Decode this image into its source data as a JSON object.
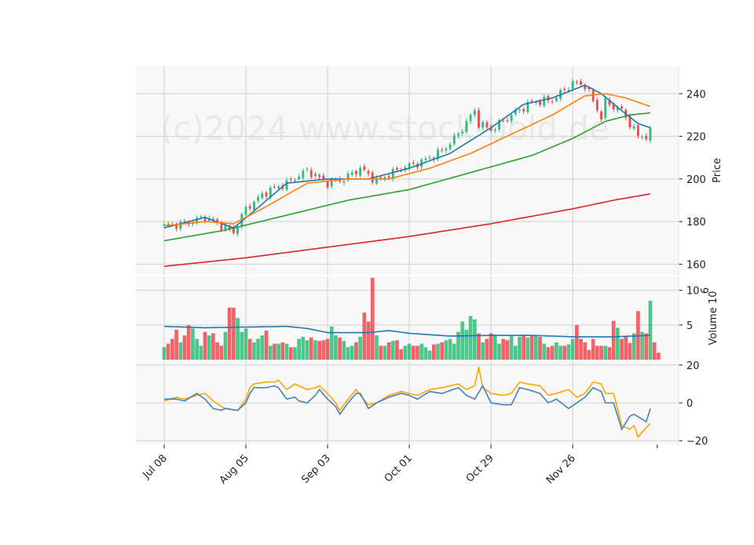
{
  "chart_data": {
    "type": "candlestick",
    "watermark": "(c)2024 www.stock-bold.de",
    "x_tick_labels": [
      "Jul 08",
      "Aug 05",
      "Sep 03",
      "Oct 01",
      "Oct 29",
      "Nov 26"
    ],
    "x_tick_days": [
      0,
      20,
      40,
      60,
      80,
      100
    ],
    "num_days": 120,
    "colors": {
      "up": "#2ebd7a",
      "down": "#f0494e",
      "ma1": "#1f77b4",
      "ma2": "#ff7f0e",
      "ma3": "#2ca02c",
      "ma4": "#d62728",
      "vol_ma": "#1f77b4",
      "osc1": "#4682b4",
      "osc2": "#ffa500"
    },
    "price_panel": {
      "ylabel": "Price",
      "ylim": [
        155,
        253
      ],
      "ticks": [
        160,
        180,
        200,
        220,
        240
      ],
      "anchors_day": [
        0,
        5,
        10,
        15,
        17,
        20,
        25,
        30,
        35,
        40,
        44,
        48,
        52,
        58,
        63,
        68,
        72,
        76,
        77,
        80,
        85,
        90,
        95,
        100,
        103,
        107,
        108,
        112,
        114,
        116,
        118,
        119
      ],
      "anchors_price": [
        178,
        179,
        182,
        177,
        175,
        186,
        194,
        198,
        204,
        198,
        200,
        205,
        199,
        205,
        208,
        213,
        221,
        232,
        226,
        223,
        230,
        236,
        237,
        245,
        244,
        229,
        236,
        232,
        226,
        220,
        220,
        222
      ],
      "ma_series": [
        {
          "key": "ma1",
          "day": [
            0,
            10,
            17,
            22,
            30,
            40,
            50,
            60,
            70,
            80,
            88,
            95,
            103,
            107,
            112,
            116,
            119
          ],
          "value": [
            177,
            182,
            177,
            185,
            198,
            200,
            200,
            205,
            212,
            224,
            235,
            238,
            244,
            240,
            232,
            226,
            224
          ]
        },
        {
          "key": "ma2",
          "day": [
            0,
            10,
            17,
            25,
            35,
            45,
            55,
            65,
            75,
            85,
            95,
            103,
            108,
            113,
            119
          ],
          "value": [
            178,
            180,
            179,
            187,
            198,
            200,
            200,
            205,
            212,
            221,
            230,
            239,
            240,
            238,
            234
          ]
        },
        {
          "key": "ma3",
          "day": [
            0,
            15,
            30,
            45,
            60,
            75,
            90,
            100,
            108,
            114,
            119
          ],
          "value": [
            171,
            176,
            183,
            190,
            195,
            203,
            211,
            219,
            227,
            230,
            231
          ]
        },
        {
          "key": "ma4",
          "day": [
            0,
            20,
            40,
            60,
            80,
            100,
            110,
            119
          ],
          "value": [
            159,
            163,
            168,
            173,
            179,
            186,
            190,
            193
          ]
        }
      ]
    },
    "volume_panel": {
      "ylabel": "Volume  10",
      "ylabel_exp": "6",
      "ylim": [
        0,
        12
      ],
      "ticks": [
        5,
        10
      ],
      "values": [
        1.8,
        2.3,
        3.0,
        4.3,
        2.5,
        3.5,
        5.0,
        4.5,
        3.0,
        2.0,
        4.0,
        3.5,
        3.8,
        2.5,
        2.0,
        4.0,
        7.5,
        7.5,
        6.0,
        4.0,
        4.5,
        3.0,
        2.5,
        3.0,
        3.5,
        4.2,
        2.0,
        2.3,
        2.3,
        2.5,
        2.3,
        1.8,
        1.8,
        3.0,
        3.3,
        2.8,
        3.2,
        2.8,
        2.7,
        2.8,
        3.0,
        4.8,
        3.5,
        3.2,
        2.7,
        1.8,
        2.0,
        2.5,
        3.3,
        6.8,
        5.5,
        11.8,
        3.5,
        2.0,
        2.0,
        2.5,
        2.7,
        2.8,
        1.5,
        2.0,
        2.3,
        2.0,
        2.0,
        2.3,
        1.8,
        1.3,
        2.2,
        2.3,
        2.5,
        2.8,
        3.0,
        2.3,
        4.0,
        5.5,
        4.3,
        6.3,
        5.8,
        3.8,
        2.5,
        3.0,
        3.8,
        3.6,
        2.3,
        3.0,
        2.8,
        3.5,
        2.0,
        3.3,
        3.6,
        3.2,
        3.5,
        3.5,
        3.3,
        2.3,
        1.8,
        2.0,
        2.5,
        2.0,
        2.0,
        2.2,
        3.0,
        5.0,
        3.0,
        2.5,
        1.4,
        3.0,
        2.0,
        2.0,
        2.0,
        1.8,
        5.6,
        4.6,
        3.0,
        3.4,
        2.4,
        3.8,
        7.0,
        4.0,
        3.8,
        8.5,
        2.5,
        1.0
      ],
      "ma_day": [
        0,
        10,
        20,
        30,
        35,
        40,
        50,
        55,
        60,
        70,
        80,
        90,
        100,
        110,
        119
      ],
      "ma_value": [
        4.8,
        4.6,
        4.7,
        4.8,
        4.5,
        3.9,
        3.9,
        4.2,
        3.8,
        3.4,
        3.5,
        3.5,
        3.3,
        3.3,
        3.5
      ]
    },
    "osc_panel": {
      "ylim": [
        -22,
        22
      ],
      "ticks": [
        -20,
        0,
        20
      ],
      "osc1_day": [
        0,
        3,
        5,
        8,
        10,
        12,
        14,
        15,
        18,
        20,
        21,
        22,
        25,
        27,
        28,
        30,
        32,
        33,
        35,
        37,
        38,
        40,
        42,
        43,
        45,
        47,
        48,
        50,
        52,
        55,
        58,
        60,
        62,
        65,
        68,
        72,
        74,
        76,
        78,
        80,
        83,
        85,
        87,
        89,
        92,
        94,
        96,
        99,
        101,
        103,
        105,
        107,
        108,
        110,
        112,
        114,
        115,
        118,
        119
      ],
      "osc1_value": [
        2,
        2,
        1,
        5,
        2,
        -3,
        -4,
        -3,
        -4,
        0,
        5,
        8,
        8,
        9,
        8,
        2,
        3,
        1,
        0,
        4,
        7,
        2,
        -2,
        -6,
        0,
        5,
        5,
        -3,
        0,
        3,
        5,
        4,
        2,
        6,
        5,
        8,
        4,
        2,
        9,
        0,
        -1,
        -1,
        8,
        7,
        5,
        0,
        2,
        -3,
        0,
        3,
        8,
        6,
        0,
        0,
        -14,
        -7,
        -6,
        -10,
        -3
      ],
      "osc2_day": [
        0,
        3,
        5,
        8,
        10,
        12,
        14,
        15,
        18,
        20,
        21,
        22,
        25,
        27,
        28,
        30,
        32,
        33,
        35,
        37,
        38,
        40,
        42,
        43,
        45,
        47,
        48,
        50,
        52,
        55,
        58,
        60,
        62,
        65,
        68,
        72,
        74,
        76,
        77,
        78,
        80,
        83,
        85,
        87,
        89,
        92,
        94,
        96,
        99,
        101,
        103,
        105,
        107,
        108,
        110,
        112,
        114,
        115,
        116,
        118,
        119
      ],
      "osc2_value": [
        1,
        3,
        2,
        4,
        5,
        1,
        -2,
        -3,
        -4,
        2,
        8,
        10,
        11,
        11,
        12,
        7,
        10,
        9,
        7,
        8,
        9,
        5,
        0,
        -4,
        2,
        7,
        4,
        -1,
        0,
        4,
        6,
        5,
        4,
        7,
        8,
        10,
        7,
        9,
        19,
        8,
        5,
        4,
        5,
        11,
        10,
        9,
        4,
        5,
        7,
        3,
        5,
        11,
        10,
        5,
        5,
        -12,
        -14,
        -12,
        -18,
        -13,
        -11
      ]
    }
  }
}
